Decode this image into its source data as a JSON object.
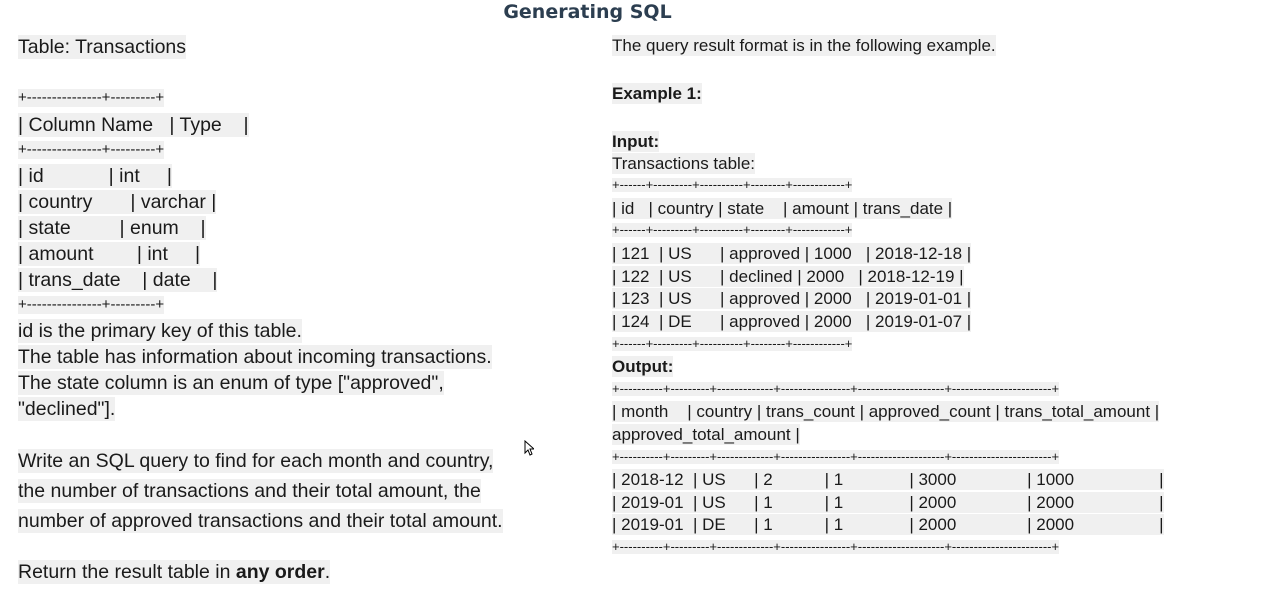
{
  "header": {
    "title": "Generating SQL"
  },
  "left": {
    "table_title": "Table: Transactions",
    "schema_rule": "+---------------+---------+",
    "schema_header": "| Column Name   | Type    |",
    "schema_rows": [
      "| id            | int     |",
      "| country       | varchar |",
      "| state         | enum    |",
      "| amount        | int     |",
      "| trans_date    | date    |"
    ],
    "notes": [
      "id is the primary key of this table.",
      "The table has information about incoming transactions.",
      "The state column is an enum of type [\"approved\",",
      "\"declined\"]."
    ],
    "question": [
      "Write an SQL query to find for each month and country,",
      "the number of transactions and their total amount, the",
      "number of approved transactions and their total amount."
    ],
    "return_prefix": "Return the result table in ",
    "return_bold": "any order",
    "return_suffix": "."
  },
  "right": {
    "format_text": "The query result format is in the following example.",
    "example_label": "Example 1:",
    "input_label": "Input:",
    "input_table_label": "Transactions table:",
    "input_rule": "+------+---------+----------+--------+------------+",
    "input_header": "| id   | country | state    | amount | trans_date |",
    "input_rows": [
      "| 121  | US      | approved | 1000   | 2018-12-18 |",
      "| 122  | US      | declined | 2000   | 2018-12-19 |",
      "| 123  | US      | approved | 2000   | 2019-01-01 |",
      "| 124  | DE      | approved | 2000   | 2019-01-07 |"
    ],
    "output_label": "Output:",
    "output_rule": "+----------+---------+-------------+----------------+--------------------+-----------------------+",
    "output_header_1": "| month    | country | trans_count | approved_count | trans_total_amount |",
    "output_header_2": "approved_total_amount |",
    "output_rows": [
      "| 2018-12  | US      | 2           | 1              | 3000               | 1000                  |",
      "| 2019-01  | US      | 1           | 1              | 2000               | 2000                  |",
      "| 2019-01  | DE      | 1           | 1              | 2000               | 2000                  |"
    ]
  },
  "colors": {
    "highlight": "#f0f0f0",
    "title": "#2c3e50",
    "text": "#1a1a1a"
  },
  "icons": {
    "cursor": "arrow-cursor-icon"
  }
}
